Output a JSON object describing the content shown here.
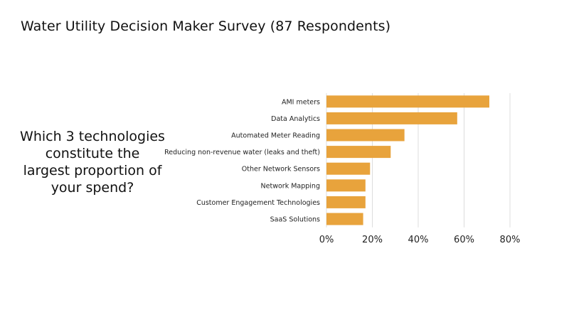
{
  "slide": {
    "title": "Water Utility Decision Maker Survey (87 Respondents)",
    "question": "Which 3 technologies constitute the largest proportion of your spend?"
  },
  "chart_data": {
    "type": "bar",
    "orientation": "horizontal",
    "categories": [
      "AMI meters",
      "Data Analytics",
      "Automated Meter Reading",
      "Reducing non-revenue water (leaks and theft)",
      "Other Network Sensors",
      "Network Mapping",
      "Customer Engagement Technologies",
      "SaaS Solutions"
    ],
    "values": [
      71,
      57,
      34,
      28,
      19,
      17,
      17,
      16
    ],
    "xlim": [
      0,
      80
    ],
    "xticks": [
      "0%",
      "20%",
      "40%",
      "60%",
      "80%"
    ],
    "xlabel": "",
    "ylabel": "",
    "grid": true,
    "bar_color": "#e8a33c",
    "grid_color": "#dddddd"
  }
}
